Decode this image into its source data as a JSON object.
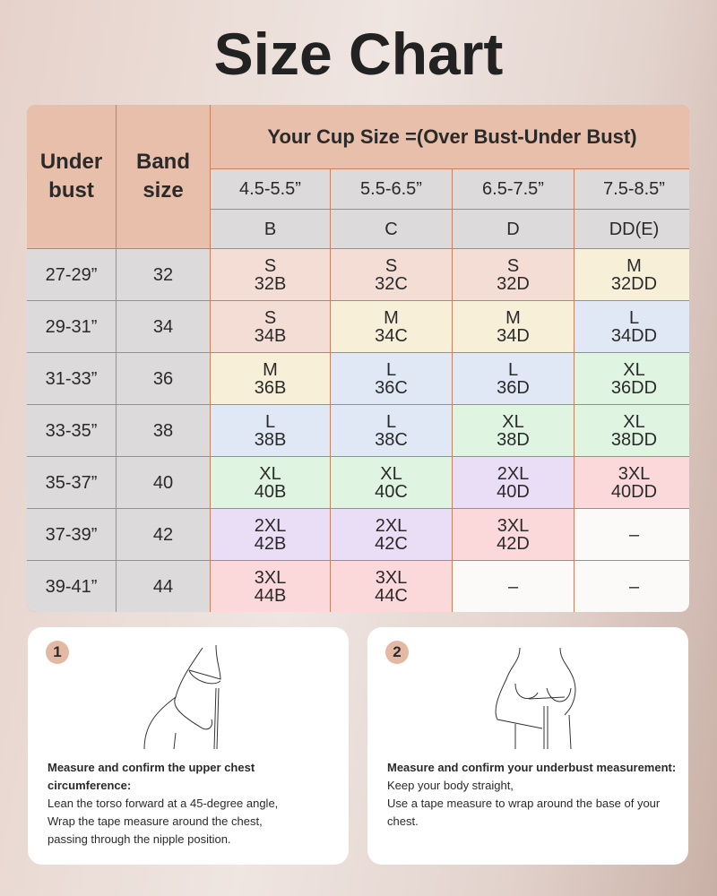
{
  "title": "Size Chart",
  "table": {
    "header_underbust": "Under bust",
    "header_band": "Band size",
    "header_cup": "Your Cup Size =(Over Bust-Under Bust)",
    "ranges": [
      "4.5-5.5”",
      "5.5-6.5”",
      "6.5-7.5”",
      "7.5-8.5”"
    ],
    "cups": [
      "B",
      "C",
      "D",
      "DD(E)"
    ],
    "rows": [
      {
        "underbust": "27-29”",
        "band": "32",
        "cells": [
          {
            "size": "S",
            "code": "32B",
            "color": "pink"
          },
          {
            "size": "S",
            "code": "32C",
            "color": "pink"
          },
          {
            "size": "S",
            "code": "32D",
            "color": "pink"
          },
          {
            "size": "M",
            "code": "32DD",
            "color": "yellow"
          }
        ]
      },
      {
        "underbust": "29-31”",
        "band": "34",
        "cells": [
          {
            "size": "S",
            "code": "34B",
            "color": "pink"
          },
          {
            "size": "M",
            "code": "34C",
            "color": "yellow"
          },
          {
            "size": "M",
            "code": "34D",
            "color": "yellow"
          },
          {
            "size": "L",
            "code": "34DD",
            "color": "blue"
          }
        ]
      },
      {
        "underbust": "31-33”",
        "band": "36",
        "cells": [
          {
            "size": "M",
            "code": "36B",
            "color": "yellow"
          },
          {
            "size": "L",
            "code": "36C",
            "color": "blue"
          },
          {
            "size": "L",
            "code": "36D",
            "color": "blue"
          },
          {
            "size": "XL",
            "code": "36DD",
            "color": "green"
          }
        ]
      },
      {
        "underbust": "33-35”",
        "band": "38",
        "cells": [
          {
            "size": "L",
            "code": "38B",
            "color": "blue"
          },
          {
            "size": "L",
            "code": "38C",
            "color": "blue"
          },
          {
            "size": "XL",
            "code": "38D",
            "color": "green"
          },
          {
            "size": "XL",
            "code": "38DD",
            "color": "green"
          }
        ]
      },
      {
        "underbust": "35-37”",
        "band": "40",
        "cells": [
          {
            "size": "XL",
            "code": "40B",
            "color": "green"
          },
          {
            "size": "XL",
            "code": "40C",
            "color": "green"
          },
          {
            "size": "2XL",
            "code": "40D",
            "color": "purple"
          },
          {
            "size": "3XL",
            "code": "40DD",
            "color": "red"
          }
        ]
      },
      {
        "underbust": "37-39”",
        "band": "42",
        "cells": [
          {
            "size": "2XL",
            "code": "42B",
            "color": "purple"
          },
          {
            "size": "2XL",
            "code": "42C",
            "color": "purple"
          },
          {
            "size": "3XL",
            "code": "42D",
            "color": "red"
          },
          {
            "size": "–",
            "code": "",
            "color": "white"
          }
        ]
      },
      {
        "underbust": "39-41”",
        "band": "44",
        "cells": [
          {
            "size": "3XL",
            "code": "44B",
            "color": "red"
          },
          {
            "size": "3XL",
            "code": "44C",
            "color": "red"
          },
          {
            "size": "–",
            "code": "",
            "color": "white"
          },
          {
            "size": "–",
            "code": "",
            "color": "white"
          }
        ]
      }
    ]
  },
  "steps": [
    {
      "number": "1",
      "heading": "Measure and confirm the upper chest circumference:",
      "lines": [
        "Lean the torso forward at a 45-degree angle,",
        "Wrap the tape measure around the chest,",
        "passing through the nipple position."
      ]
    },
    {
      "number": "2",
      "heading": "Measure and confirm your underbust measurement:",
      "lines": [
        "Keep your body straight,",
        "Use a tape measure to wrap around the base of your chest."
      ]
    }
  ]
}
